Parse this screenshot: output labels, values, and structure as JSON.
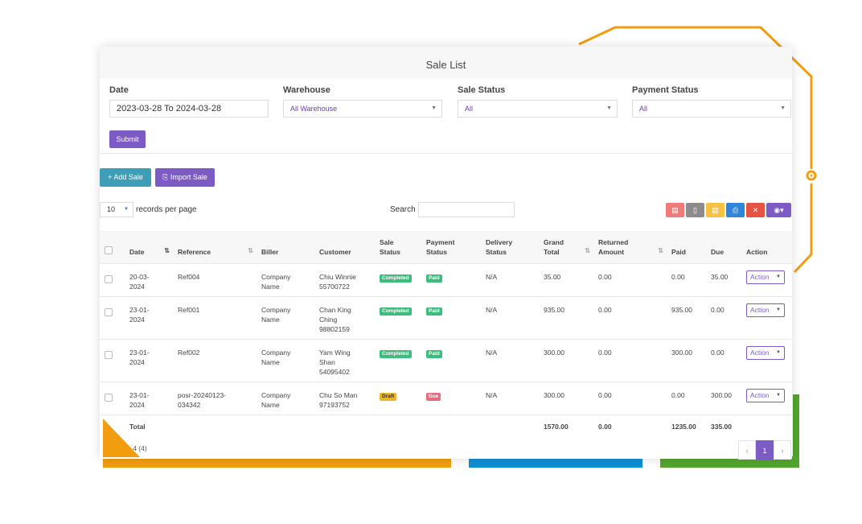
{
  "filter": {
    "title": "Sale List",
    "date_label": "Date",
    "date_value": "2023-03-28 To 2024-03-28",
    "warehouse_label": "Warehouse",
    "warehouse_value": "All Warehouse",
    "sale_status_label": "Sale Status",
    "sale_status_value": "All",
    "payment_status_label": "Payment Status",
    "payment_status_value": "All",
    "submit_label": "Submit"
  },
  "actions": {
    "add_sale": "+ Add Sale",
    "import_sale": "Import Sale"
  },
  "listing": {
    "records_per_page_value": "10",
    "records_per_page_label": "records per page",
    "search_label": "Search"
  },
  "toolbar_icons": [
    "pdf-icon",
    "csv-icon",
    "excel-icon",
    "print-icon",
    "delete-icon",
    "eye-icon"
  ],
  "table": {
    "headers": {
      "date": "Date",
      "reference": "Reference",
      "biller": "Biller",
      "customer": "Customer",
      "sale_status_1": "Sale",
      "sale_status_2": "Status",
      "payment_status_1": "Payment",
      "payment_status_2": "Status",
      "delivery_status_1": "Delivery",
      "delivery_status_2": "Status",
      "grand_total_1": "Grand",
      "grand_total_2": "Total",
      "returned_1": "Returned",
      "returned_2": "Amount",
      "paid": "Paid",
      "due": "Due",
      "action": "Action"
    },
    "rows": [
      {
        "date_1": "20-03-",
        "date_2": "2024",
        "reference_1": "Ref004",
        "reference_2": "",
        "biller_1": "Company",
        "biller_2": "Name",
        "customer_1": "Chiu Winnie",
        "customer_2": "55700722",
        "customer_3": "",
        "sale_status": "Completed",
        "payment_status": "Paid",
        "delivery": "N/A",
        "grand_total": "35.00",
        "returned": "0.00",
        "paid": "0.00",
        "due": "35.00",
        "action": "Action"
      },
      {
        "date_1": "23-01-",
        "date_2": "2024",
        "reference_1": "Ref001",
        "reference_2": "",
        "biller_1": "Company",
        "biller_2": "Name",
        "customer_1": "Chan King",
        "customer_2": "Ching",
        "customer_3": "98802159",
        "sale_status": "Completed",
        "payment_status": "Paid",
        "delivery": "N/A",
        "grand_total": "935.00",
        "returned": "0.00",
        "paid": "935.00",
        "due": "0.00",
        "action": "Action"
      },
      {
        "date_1": "23-01-",
        "date_2": "2024",
        "reference_1": "Ref002",
        "reference_2": "",
        "biller_1": "Company",
        "biller_2": "Name",
        "customer_1": "Yam Wing",
        "customer_2": "Shan",
        "customer_3": "54095402",
        "sale_status": "Completed",
        "payment_status": "Paid",
        "delivery": "N/A",
        "grand_total": "300.00",
        "returned": "0.00",
        "paid": "300.00",
        "due": "0.00",
        "action": "Action"
      },
      {
        "date_1": "23-01-",
        "date_2": "2024",
        "reference_1": "posr-20240123-",
        "reference_2": "034342",
        "biller_1": "Company",
        "biller_2": "Name",
        "customer_1": "Chu So Man",
        "customer_2": "97193752",
        "customer_3": "",
        "sale_status": "Draft",
        "payment_status": "Due",
        "delivery": "N/A",
        "grand_total": "300.00",
        "returned": "0.00",
        "paid": "0.00",
        "due": "300.00",
        "action": "Action"
      }
    ],
    "footer": {
      "label": "Total",
      "grand_total": "1570.00",
      "returned": "0.00",
      "paid": "1235.00",
      "due": "335.00"
    }
  },
  "pagination": {
    "info": "- 4 (4)",
    "prev": "‹",
    "current": "1",
    "next": "›"
  },
  "colors": {
    "accent": "#7c5cc4",
    "teal": "#3e9eb7",
    "orange": "#f29d10",
    "blue": "#0f8fd4",
    "green": "#52a52e"
  }
}
